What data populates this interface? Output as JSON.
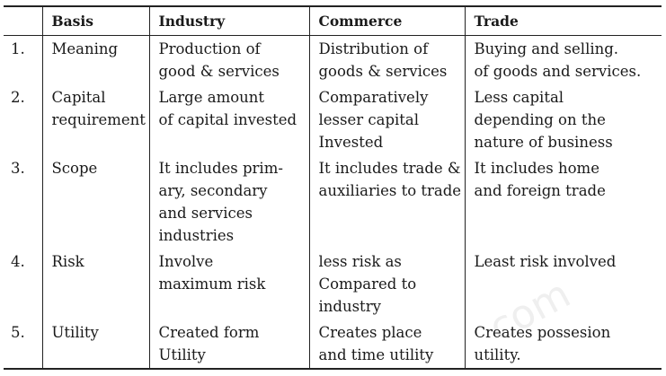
{
  "table": {
    "headers": [
      "",
      "Basis",
      "Industry",
      "Commerce",
      "Trade"
    ],
    "rows": [
      {
        "no": "1.",
        "basis": "Meaning",
        "industry": "Production of\ngood & services",
        "commerce": "Distribution of\ngoods & services",
        "trade": "Buying and selling.\nof goods and services."
      },
      {
        "no": "2.",
        "basis": "Capital\nrequirement",
        "industry": "Large amount\nof capital invested",
        "commerce": "Comparatively\nlesser capital\nInvested",
        "trade": "Less capital\ndepending on the\nnature of business"
      },
      {
        "no": "3.",
        "basis": "Scope",
        "industry": "It includes prim-\nary, secondary\nand services\nindustries",
        "commerce": "It includes trade &\nauxiliaries to trade",
        "trade": "It includes home\nand foreign trade"
      },
      {
        "no": "4.",
        "basis": "Risk",
        "industry": "Involve\nmaximum risk",
        "commerce": "less risk as\nCompared to\nindustry",
        "trade": "Least risk involved"
      },
      {
        "no": "5.",
        "basis": "Utility",
        "industry": "Created form\nUtility",
        "commerce": "Creates place\nand time utility",
        "trade": "Creates possesion\nutility."
      }
    ]
  },
  "watermark": "com"
}
